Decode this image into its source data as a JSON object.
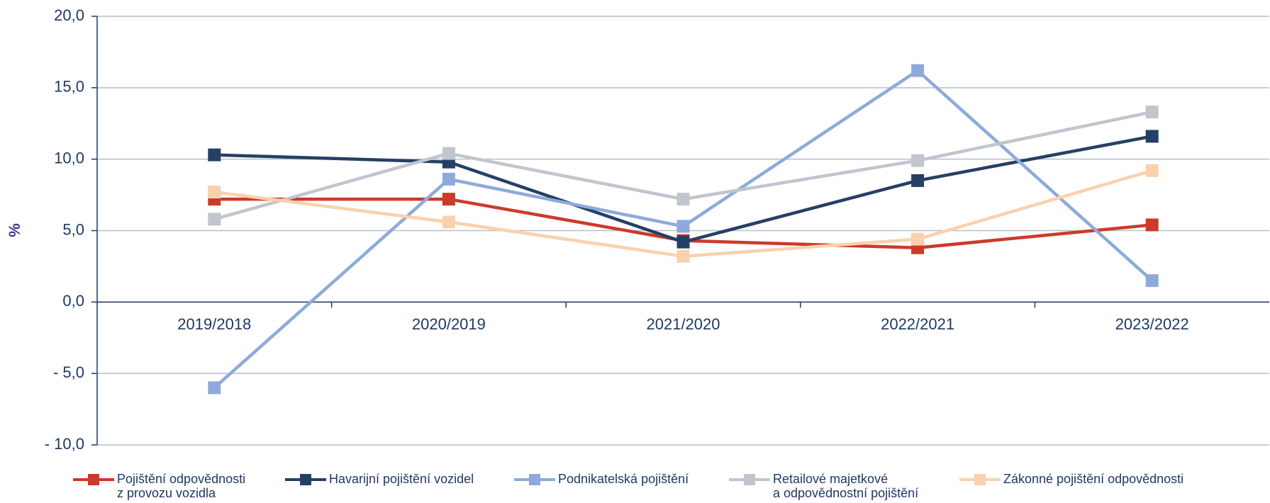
{
  "chart_data": {
    "type": "line",
    "y_label": "%",
    "categories": [
      "2019/2018",
      "2020/2019",
      "2021/2020",
      "2022/2021",
      "2023/2022"
    ],
    "series": [
      {
        "name": "Pojištění odpovědnosti\nz provozu vozidla",
        "color": "#cc3a2a",
        "values": [
          7.2,
          7.2,
          4.3,
          3.8,
          5.4
        ]
      },
      {
        "name": "Havarijní pojištění vozidel",
        "color": "#263f66",
        "values": [
          10.3,
          9.8,
          4.2,
          8.5,
          11.6
        ]
      },
      {
        "name": "Podnikatelská pojištění",
        "color": "#8eaadb",
        "values": [
          -6.0,
          8.6,
          5.3,
          16.2,
          1.5
        ]
      },
      {
        "name": "Retailové majetkové\na odpovědnostní pojištění",
        "color": "#c0c5ce",
        "values": [
          5.8,
          10.4,
          7.2,
          9.9,
          13.3
        ]
      },
      {
        "name": "Zákonné pojištění odpovědnosti",
        "color": "#fad1ad",
        "values": [
          7.7,
          5.6,
          3.2,
          4.4,
          9.2
        ]
      }
    ],
    "ylim": [
      -10,
      20
    ],
    "yticks": [
      {
        "value": -10,
        "label": "- 10,0"
      },
      {
        "value": -5,
        "label": "- 5,0"
      },
      {
        "value": 0,
        "label": "0,0"
      },
      {
        "value": 5,
        "label": "5,0"
      },
      {
        "value": 10,
        "label": "10,0"
      },
      {
        "value": 15,
        "label": "15,0"
      },
      {
        "value": 20,
        "label": "20,0"
      }
    ],
    "grid": true
  }
}
